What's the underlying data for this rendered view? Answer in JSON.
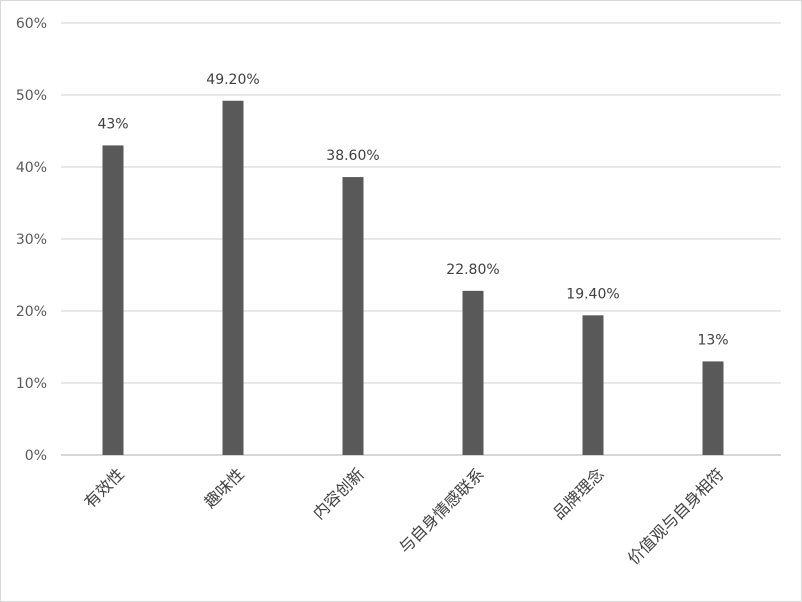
{
  "chart_data": {
    "type": "bar",
    "title": "",
    "xlabel": "",
    "ylabel": "",
    "categories": [
      "有效性",
      "趣味性",
      "内容创新",
      "与自身情感联系",
      "品牌理念",
      "价值观与自身相符"
    ],
    "values": [
      43,
      49.2,
      38.6,
      22.8,
      19.4,
      13
    ],
    "data_labels": [
      "43%",
      "49.20%",
      "38.60%",
      "22.80%",
      "19.40%",
      "13%"
    ],
    "ylim": [
      0,
      60
    ],
    "yticks": [
      0,
      10,
      20,
      30,
      40,
      50,
      60
    ],
    "ytick_labels": [
      "0%",
      "10%",
      "20%",
      "30%",
      "40%",
      "50%",
      "60%"
    ],
    "grid": true,
    "legend": "none",
    "colors": {
      "bar": "#595959",
      "grid": "#d9d9d9",
      "axis": "#bfbfbf"
    }
  }
}
